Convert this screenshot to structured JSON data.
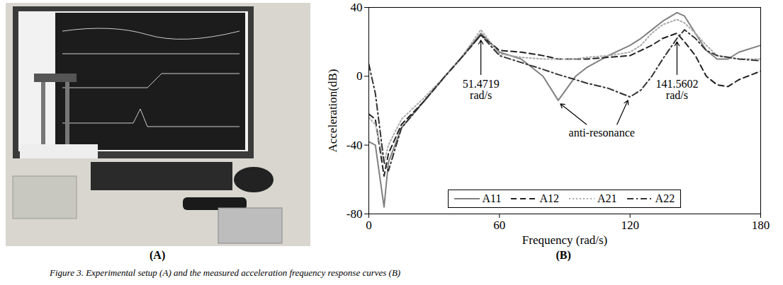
{
  "chart_data": {
    "type": "line",
    "xlabel": "Frequency (rad/s)",
    "ylabel": "Acceleration(dB)",
    "x": [
      0,
      3,
      7,
      9,
      15,
      25,
      35,
      42,
      51.4719,
      60,
      70,
      80,
      87,
      95,
      100,
      110,
      120,
      125,
      130,
      135,
      141.5602,
      145,
      150,
      155,
      160,
      165,
      170,
      180
    ],
    "series": [
      {
        "name": "A11",
        "color": "#808080",
        "line_style": "solid",
        "values": [
          -38,
          -40,
          -76,
          -50,
          -30,
          -15,
          0,
          10,
          25,
          14,
          10,
          0,
          -14,
          0,
          5,
          12,
          18,
          22,
          27,
          32,
          37,
          35,
          25,
          15,
          10,
          10,
          14,
          18
        ]
      },
      {
        "name": "A12",
        "color": "#222222",
        "line_style": "dashed",
        "values": [
          -22,
          -25,
          -58,
          -45,
          -28,
          -15,
          0,
          10,
          24,
          15,
          14,
          12,
          10,
          10,
          10,
          11,
          12,
          15,
          18,
          22,
          25,
          20,
          12,
          0,
          -5,
          -6,
          -2,
          3
        ]
      },
      {
        "name": "A21",
        "color": "#aaaaaa",
        "line_style": "dotted",
        "values": [
          -24,
          -28,
          -50,
          -40,
          -25,
          -13,
          0,
          10,
          27,
          13,
          11,
          10,
          10,
          10,
          11,
          12,
          14,
          18,
          25,
          30,
          33,
          31,
          25,
          18,
          12,
          11,
          10,
          10
        ]
      },
      {
        "name": "A22",
        "color": "#333333",
        "line_style": "dashdot",
        "values": [
          7,
          -10,
          -50,
          -55,
          -30,
          -15,
          0,
          10,
          24,
          12,
          8,
          4,
          1,
          -2,
          -4,
          -7,
          -12,
          -8,
          0,
          10,
          22,
          27,
          22,
          15,
          12,
          11,
          10,
          9
        ]
      }
    ],
    "xlim": [
      0,
      180
    ],
    "xticks": [
      0,
      60,
      120,
      180
    ],
    "ylim": [
      -80,
      40
    ],
    "yticks": [
      -80,
      -40,
      0,
      40
    ],
    "grid": false,
    "legend": "bottom",
    "annotations": [
      {
        "text": "51.4719\nrad/s",
        "x": 51.4719,
        "y": -8,
        "arrows": [
          {
            "from": [
              51.4719,
              1
            ],
            "to": [
              51.4719,
              21
            ]
          }
        ]
      },
      {
        "text": "anti-resonance",
        "x": 107,
        "y": -33,
        "arrows": [
          {
            "from": [
              100,
              -28
            ],
            "to": [
              88,
              -16
            ]
          },
          {
            "from": [
              114,
              -28
            ],
            "to": [
              119,
              -14
            ]
          }
        ]
      },
      {
        "text": "141.5602\nrad/s",
        "x": 141.5602,
        "y": -8,
        "arrows": [
          {
            "from": [
              141.5602,
              1
            ],
            "to": [
              141.5602,
              20
            ]
          }
        ]
      }
    ]
  },
  "figure": {
    "panel_labels": [
      "(A)",
      "(B)"
    ],
    "caption": "Figure 3. Experimental setup (A) and the measured acceleration frequency response curves (B)"
  }
}
